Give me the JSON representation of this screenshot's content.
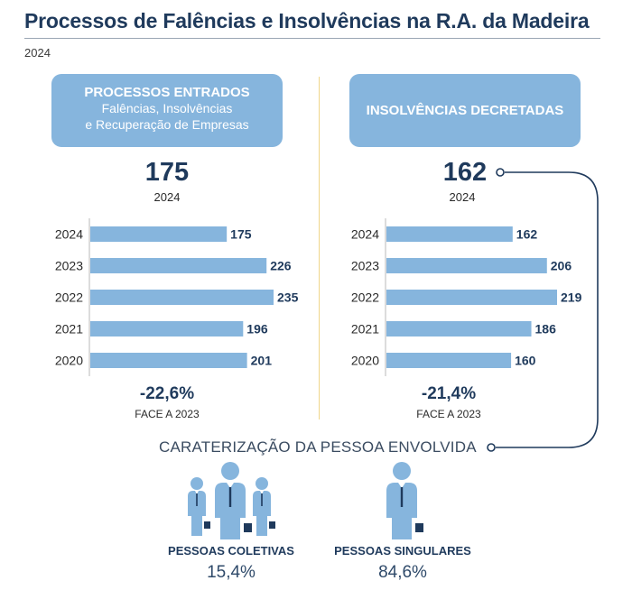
{
  "header": {
    "title": "Processos de Falências e Insolvências na R.A. da Madeira",
    "year": "2024"
  },
  "left_panel": {
    "title": "PROCESSOS ENTRADOS",
    "subtitle_line1": "Falências, Insolvências",
    "subtitle_line2": "e Recuperação de Empresas",
    "big_value": "175",
    "big_year": "2024",
    "change": "-22,6%",
    "change_label": "FACE A 2023"
  },
  "right_panel": {
    "title": "INSOLVÊNCIAS DECRETADAS",
    "big_value": "162",
    "big_year": "2024",
    "change": "-21,4%",
    "change_label": "FACE A 2023"
  },
  "chart_data": [
    {
      "type": "bar",
      "orientation": "horizontal",
      "title": "PROCESSOS ENTRADOS",
      "categories": [
        "2024",
        "2023",
        "2022",
        "2021",
        "2020"
      ],
      "values": [
        175,
        226,
        235,
        196,
        201
      ],
      "xlim": [
        0,
        235
      ]
    },
    {
      "type": "bar",
      "orientation": "horizontal",
      "title": "INSOLVÊNCIAS DECRETADAS",
      "categories": [
        "2024",
        "2023",
        "2022",
        "2021",
        "2020"
      ],
      "values": [
        162,
        206,
        219,
        186,
        160
      ],
      "xlim": [
        0,
        219
      ]
    }
  ],
  "characterization": {
    "title": "CARATERIZAÇÃO DA PESSOA ENVOLVIDA",
    "groups": [
      {
        "label": "PESSOAS COLETIVAS",
        "percent": "15,4%",
        "value": 15.4,
        "icon": "group-of-people-icon"
      },
      {
        "label": "PESSOAS SINGULARES",
        "percent": "84,6%",
        "value": 84.6,
        "icon": "single-person-icon"
      }
    ]
  },
  "colors": {
    "bar": "#86b5dd",
    "dark_blue": "#1f3a5c",
    "divider": "#f0d68a"
  }
}
